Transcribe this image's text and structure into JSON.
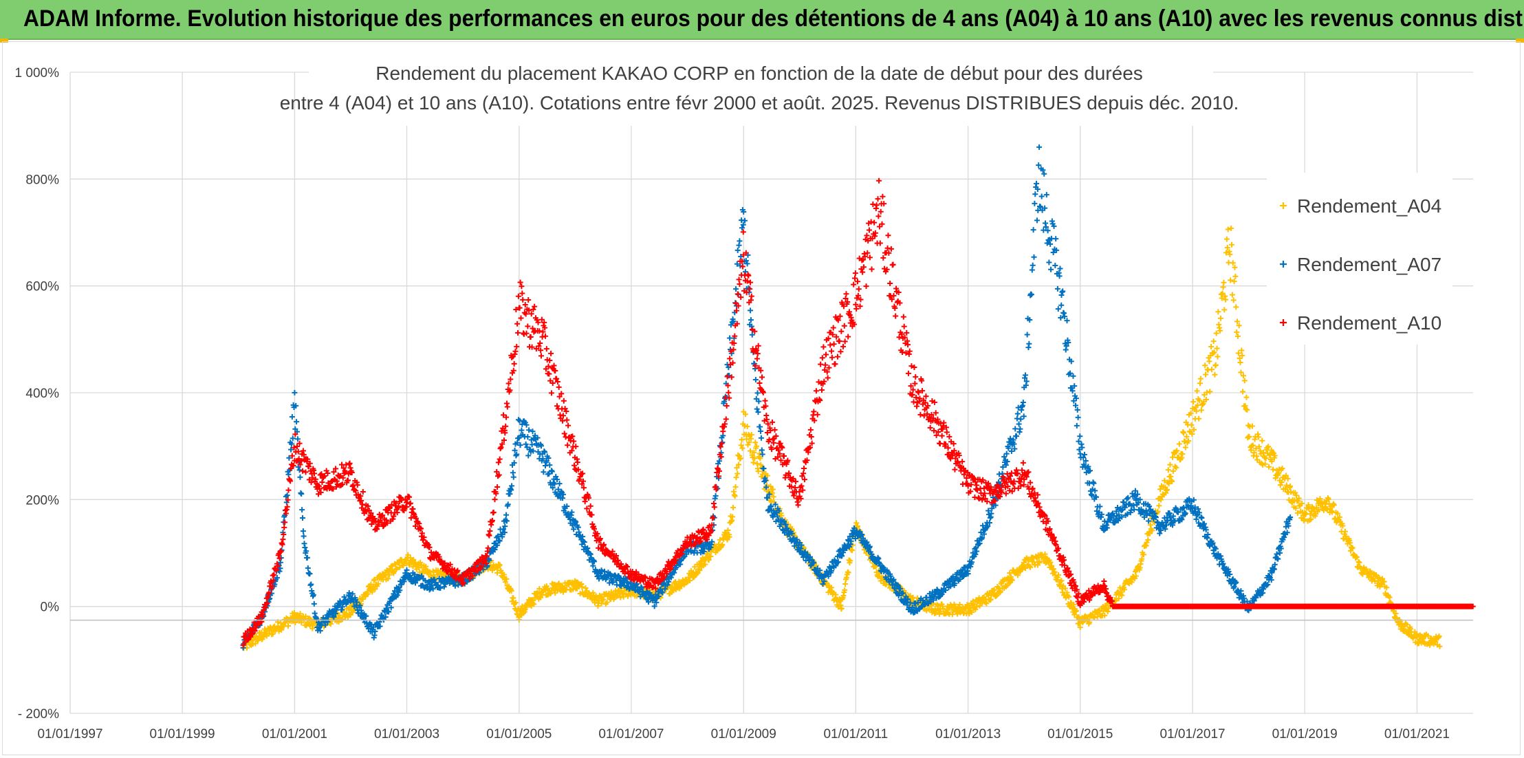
{
  "banner": {
    "title": "ADAM Informe. Evolution historique des performances en euros pour des détentions de 4 ans (A04) à 10 ans (A10) avec les revenus connus distribués"
  },
  "colors": {
    "banner": "#7fcd6f",
    "A04": "#ffc000",
    "A07": "#0070c0",
    "A10": "#ff0000",
    "grid": "#d9d9d9"
  },
  "chart_data": {
    "type": "scatter",
    "title_line1": "Rendement du placement KAKAO CORP en fonction de la date de début pour des durées",
    "title_line2": "entre 4 (A04) et 10 ans (A10). Cotations entre févr 2000 et août. 2025. Revenus DISTRIBUES depuis déc. 2010.",
    "x_ticks": [
      "01/01/1997",
      "01/01/1999",
      "01/01/2001",
      "01/01/2003",
      "01/01/2005",
      "01/01/2007",
      "01/01/2009",
      "01/01/2011",
      "01/01/2013",
      "01/01/2015",
      "01/01/2017",
      "01/01/2019",
      "01/01/2021"
    ],
    "y_ticks": [
      "1 000%",
      "800%",
      "600%",
      "400%",
      "200%",
      "0%",
      "- 200%"
    ],
    "xlim": [
      "1997-01-01",
      "2022-01-01"
    ],
    "ylim": [
      -200,
      1000
    ],
    "grid": true,
    "legend_position": "right",
    "marker": "+",
    "series": [
      {
        "name": "Rendement_A04",
        "color": "#ffc000",
        "points": [
          [
            "2000-02-01",
            -75
          ],
          [
            "2000-06-01",
            -55
          ],
          [
            "2001-01-01",
            -20
          ],
          [
            "2001-06-01",
            -35
          ],
          [
            "2002-01-01",
            -10
          ],
          [
            "2002-06-01",
            40
          ],
          [
            "2003-01-01",
            90
          ],
          [
            "2003-06-01",
            60
          ],
          [
            "2004-01-01",
            50
          ],
          [
            "2004-06-01",
            80
          ],
          [
            "2004-09-01",
            70
          ],
          [
            "2005-01-01",
            -15
          ],
          [
            "2005-06-01",
            30
          ],
          [
            "2006-01-01",
            40
          ],
          [
            "2006-06-01",
            10
          ],
          [
            "2007-01-01",
            30
          ],
          [
            "2007-06-01",
            20
          ],
          [
            "2008-01-01",
            50
          ],
          [
            "2008-06-01",
            100
          ],
          [
            "2008-10-01",
            140
          ],
          [
            "2009-01-01",
            340
          ],
          [
            "2009-06-01",
            230
          ],
          [
            "2009-10-01",
            150
          ],
          [
            "2010-06-01",
            50
          ],
          [
            "2010-10-01",
            0
          ],
          [
            "2011-01-01",
            150
          ],
          [
            "2011-06-01",
            60
          ],
          [
            "2012-01-01",
            10
          ],
          [
            "2012-06-01",
            -5
          ],
          [
            "2013-01-01",
            -5
          ],
          [
            "2013-06-01",
            20
          ],
          [
            "2014-01-01",
            80
          ],
          [
            "2014-06-01",
            90
          ],
          [
            "2015-01-01",
            -30
          ],
          [
            "2015-06-01",
            -10
          ],
          [
            "2016-01-01",
            60
          ],
          [
            "2016-06-01",
            200
          ],
          [
            "2016-12-01",
            330
          ],
          [
            "2017-06-01",
            470
          ],
          [
            "2017-09-01",
            680
          ],
          [
            "2018-01-01",
            320
          ],
          [
            "2018-06-01",
            270
          ],
          [
            "2019-01-01",
            170
          ],
          [
            "2019-06-01",
            200
          ],
          [
            "2020-01-01",
            70
          ],
          [
            "2020-06-01",
            40
          ],
          [
            "2020-09-01",
            -30
          ],
          [
            "2021-01-01",
            -60
          ],
          [
            "2021-06-01",
            -65
          ]
        ]
      },
      {
        "name": "Rendement_A07",
        "color": "#0070c0",
        "points": [
          [
            "2000-02-01",
            -70
          ],
          [
            "2000-06-01",
            -20
          ],
          [
            "2000-10-01",
            80
          ],
          [
            "2001-01-01",
            380
          ],
          [
            "2001-03-01",
            130
          ],
          [
            "2001-06-01",
            -40
          ],
          [
            "2002-01-01",
            20
          ],
          [
            "2002-06-01",
            -50
          ],
          [
            "2003-01-01",
            60
          ],
          [
            "2003-06-01",
            40
          ],
          [
            "2004-01-01",
            50
          ],
          [
            "2004-06-01",
            80
          ],
          [
            "2004-10-01",
            150
          ],
          [
            "2005-01-01",
            330
          ],
          [
            "2005-06-01",
            280
          ],
          [
            "2006-01-01",
            150
          ],
          [
            "2006-06-01",
            60
          ],
          [
            "2007-01-01",
            40
          ],
          [
            "2007-06-01",
            10
          ],
          [
            "2008-01-01",
            110
          ],
          [
            "2008-06-01",
            110
          ],
          [
            "2009-01-01",
            720
          ],
          [
            "2009-03-01",
            480
          ],
          [
            "2009-06-01",
            200
          ],
          [
            "2010-01-01",
            110
          ],
          [
            "2010-06-01",
            50
          ],
          [
            "2011-01-01",
            140
          ],
          [
            "2011-06-01",
            80
          ],
          [
            "2012-01-01",
            -5
          ],
          [
            "2012-06-01",
            20
          ],
          [
            "2013-01-01",
            70
          ],
          [
            "2013-06-01",
            180
          ],
          [
            "2014-01-01",
            380
          ],
          [
            "2014-04-01",
            810
          ],
          [
            "2014-09-01",
            580
          ],
          [
            "2015-01-01",
            300
          ],
          [
            "2015-06-01",
            150
          ],
          [
            "2016-01-01",
            200
          ],
          [
            "2016-06-01",
            150
          ],
          [
            "2017-01-01",
            190
          ],
          [
            "2017-06-01",
            100
          ],
          [
            "2018-01-01",
            -5
          ],
          [
            "2018-06-01",
            60
          ],
          [
            "2018-10-01",
            170
          ]
        ]
      },
      {
        "name": "Rendement_A10",
        "color": "#ff0000",
        "points": [
          [
            "2000-02-01",
            -65
          ],
          [
            "2000-06-01",
            -20
          ],
          [
            "2000-10-01",
            100
          ],
          [
            "2001-01-01",
            300
          ],
          [
            "2001-06-01",
            230
          ],
          [
            "2002-01-01",
            250
          ],
          [
            "2002-06-01",
            150
          ],
          [
            "2003-01-01",
            200
          ],
          [
            "2003-06-01",
            100
          ],
          [
            "2004-01-01",
            50
          ],
          [
            "2004-06-01",
            90
          ],
          [
            "2004-10-01",
            350
          ],
          [
            "2005-01-01",
            560
          ],
          [
            "2005-06-01",
            500
          ],
          [
            "2006-01-01",
            280
          ],
          [
            "2006-06-01",
            120
          ],
          [
            "2007-01-01",
            60
          ],
          [
            "2007-06-01",
            40
          ],
          [
            "2008-01-01",
            120
          ],
          [
            "2008-06-01",
            140
          ],
          [
            "2009-01-01",
            650
          ],
          [
            "2009-06-01",
            340
          ],
          [
            "2010-01-01",
            200
          ],
          [
            "2010-06-01",
            450
          ],
          [
            "2011-01-01",
            580
          ],
          [
            "2011-06-01",
            740
          ],
          [
            "2012-01-01",
            420
          ],
          [
            "2012-06-01",
            350
          ],
          [
            "2013-01-01",
            230
          ],
          [
            "2013-06-01",
            210
          ],
          [
            "2014-01-01",
            250
          ],
          [
            "2014-06-01",
            150
          ],
          [
            "2015-01-01",
            10
          ],
          [
            "2015-06-01",
            40
          ],
          [
            "2015-08-01",
            0
          ],
          [
            "2016-06-01",
            0
          ],
          [
            "2018-01-01",
            0
          ],
          [
            "2020-01-01",
            0
          ],
          [
            "2022-01-01",
            0
          ]
        ]
      }
    ]
  }
}
